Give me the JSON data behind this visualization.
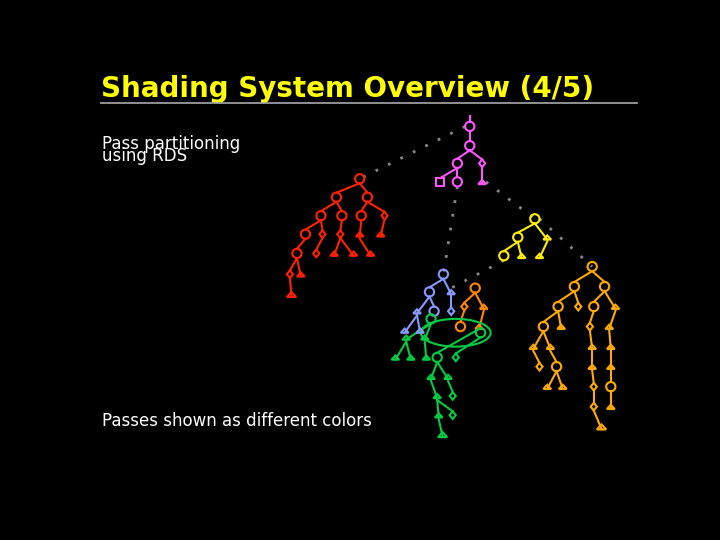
{
  "title": "Shading System Overview (4/5)",
  "subtitle1": "Pass partitioning",
  "subtitle2": "using RDS",
  "footer": "Passes shown as different colors",
  "bg_color": "#000000",
  "title_color": "#ffff00",
  "text_color": "#ffffff",
  "title_fontsize": 20,
  "text_fontsize": 12,
  "footer_fontsize": 12,
  "colors": {
    "magenta": "#ff55ff",
    "red": "#ff2200",
    "blue": "#8899ff",
    "green": "#00cc44",
    "orange": "#ff8800",
    "yellow": "#ffee00",
    "gold": "#ffaa00"
  },
  "dot_color": "#888888"
}
